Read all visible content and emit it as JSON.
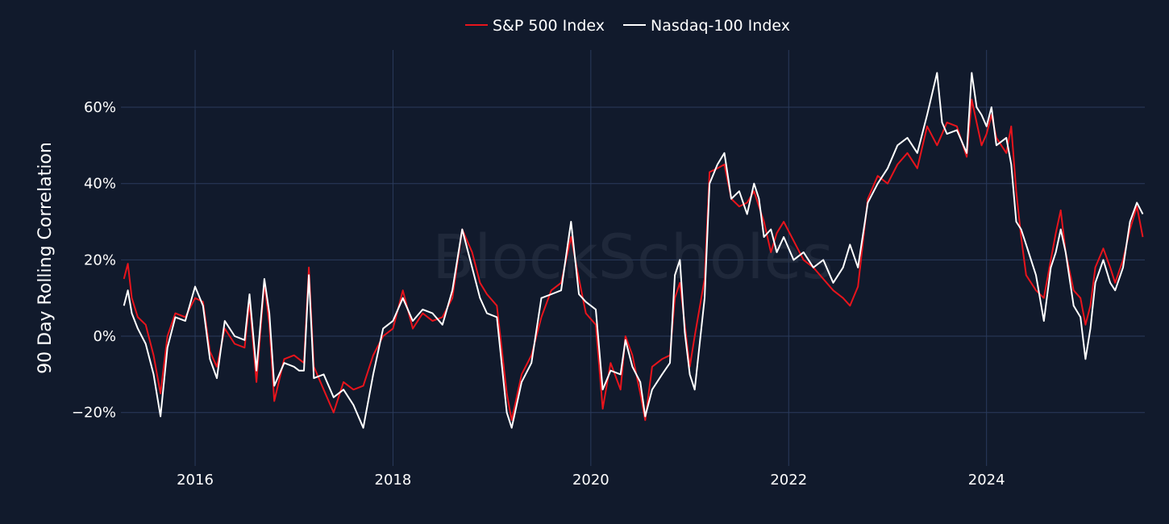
{
  "chart_data": {
    "type": "line",
    "title": "",
    "xlabel": "",
    "ylabel": "90 Day Rolling Correlation",
    "watermark": "BlockScholes",
    "xlim": [
      2015.25,
      2025.6
    ],
    "ylim": [
      -34,
      75
    ],
    "x_ticks": [
      {
        "value": 2016,
        "label": "2016"
      },
      {
        "value": 2018,
        "label": "2018"
      },
      {
        "value": 2020,
        "label": "2020"
      },
      {
        "value": 2022,
        "label": "2022"
      },
      {
        "value": 2024,
        "label": "2024"
      }
    ],
    "y_ticks": [
      {
        "value": -20,
        "label": "−20%"
      },
      {
        "value": 0,
        "label": "0%"
      },
      {
        "value": 20,
        "label": "20%"
      },
      {
        "value": 40,
        "label": "40%"
      },
      {
        "value": 60,
        "label": "60%"
      }
    ],
    "legend_position": "top-center",
    "series": [
      {
        "name": "S&P 500 Index",
        "color": "#e8141c",
        "points": [
          [
            2015.28,
            15
          ],
          [
            2015.32,
            19
          ],
          [
            2015.36,
            10
          ],
          [
            2015.42,
            5
          ],
          [
            2015.5,
            3
          ],
          [
            2015.58,
            -5
          ],
          [
            2015.65,
            -15
          ],
          [
            2015.72,
            0
          ],
          [
            2015.8,
            6
          ],
          [
            2015.9,
            5
          ],
          [
            2016.0,
            10
          ],
          [
            2016.08,
            9
          ],
          [
            2016.15,
            -4
          ],
          [
            2016.22,
            -8
          ],
          [
            2016.3,
            2
          ],
          [
            2016.4,
            -2
          ],
          [
            2016.5,
            -3
          ],
          [
            2016.55,
            9
          ],
          [
            2016.62,
            -12
          ],
          [
            2016.7,
            14
          ],
          [
            2016.75,
            3
          ],
          [
            2016.8,
            -17
          ],
          [
            2016.9,
            -6
          ],
          [
            2017.0,
            -5
          ],
          [
            2017.05,
            -6
          ],
          [
            2017.1,
            -7
          ],
          [
            2017.15,
            18
          ],
          [
            2017.2,
            -8
          ],
          [
            2017.3,
            -14
          ],
          [
            2017.4,
            -20
          ],
          [
            2017.5,
            -12
          ],
          [
            2017.6,
            -14
          ],
          [
            2017.7,
            -13
          ],
          [
            2017.8,
            -5
          ],
          [
            2017.9,
            0
          ],
          [
            2018.0,
            2
          ],
          [
            2018.1,
            12
          ],
          [
            2018.2,
            2
          ],
          [
            2018.3,
            6
          ],
          [
            2018.4,
            4
          ],
          [
            2018.5,
            5
          ],
          [
            2018.6,
            10
          ],
          [
            2018.7,
            28
          ],
          [
            2018.8,
            22
          ],
          [
            2018.88,
            14
          ],
          [
            2018.95,
            11
          ],
          [
            2019.05,
            8
          ],
          [
            2019.15,
            -15
          ],
          [
            2019.2,
            -22
          ],
          [
            2019.3,
            -10
          ],
          [
            2019.4,
            -5
          ],
          [
            2019.5,
            5
          ],
          [
            2019.6,
            12
          ],
          [
            2019.7,
            14
          ],
          [
            2019.8,
            26
          ],
          [
            2019.88,
            15
          ],
          [
            2019.95,
            6
          ],
          [
            2020.05,
            3
          ],
          [
            2020.12,
            -19
          ],
          [
            2020.2,
            -7
          ],
          [
            2020.3,
            -14
          ],
          [
            2020.35,
            0
          ],
          [
            2020.42,
            -5
          ],
          [
            2020.5,
            -15
          ],
          [
            2020.55,
            -22
          ],
          [
            2020.62,
            -8
          ],
          [
            2020.72,
            -6
          ],
          [
            2020.8,
            -5
          ],
          [
            2020.85,
            10
          ],
          [
            2020.9,
            14
          ],
          [
            2020.95,
            3
          ],
          [
            2021.0,
            -8
          ],
          [
            2021.05,
            0
          ],
          [
            2021.15,
            15
          ],
          [
            2021.2,
            43
          ],
          [
            2021.28,
            44
          ],
          [
            2021.35,
            45
          ],
          [
            2021.42,
            36
          ],
          [
            2021.5,
            34
          ],
          [
            2021.58,
            35
          ],
          [
            2021.65,
            38
          ],
          [
            2021.7,
            34
          ],
          [
            2021.75,
            30
          ],
          [
            2021.82,
            22
          ],
          [
            2021.88,
            27
          ],
          [
            2021.95,
            30
          ],
          [
            2022.05,
            25
          ],
          [
            2022.15,
            20
          ],
          [
            2022.25,
            18
          ],
          [
            2022.35,
            15
          ],
          [
            2022.45,
            12
          ],
          [
            2022.55,
            10
          ],
          [
            2022.62,
            8
          ],
          [
            2022.7,
            13
          ],
          [
            2022.8,
            36
          ],
          [
            2022.9,
            42
          ],
          [
            2023.0,
            40
          ],
          [
            2023.1,
            45
          ],
          [
            2023.2,
            48
          ],
          [
            2023.3,
            44
          ],
          [
            2023.4,
            55
          ],
          [
            2023.5,
            50
          ],
          [
            2023.55,
            53
          ],
          [
            2023.6,
            56
          ],
          [
            2023.7,
            55
          ],
          [
            2023.8,
            47
          ],
          [
            2023.85,
            62
          ],
          [
            2023.9,
            56
          ],
          [
            2023.95,
            50
          ],
          [
            2024.0,
            53
          ],
          [
            2024.05,
            58
          ],
          [
            2024.1,
            52
          ],
          [
            2024.2,
            48
          ],
          [
            2024.25,
            55
          ],
          [
            2024.3,
            38
          ],
          [
            2024.35,
            26
          ],
          [
            2024.4,
            16
          ],
          [
            2024.5,
            12
          ],
          [
            2024.58,
            10
          ],
          [
            2024.65,
            20
          ],
          [
            2024.7,
            27
          ],
          [
            2024.75,
            33
          ],
          [
            2024.8,
            22
          ],
          [
            2024.88,
            12
          ],
          [
            2024.95,
            10
          ],
          [
            2025.0,
            3
          ],
          [
            2025.05,
            8
          ],
          [
            2025.1,
            18
          ],
          [
            2025.18,
            23
          ],
          [
            2025.25,
            18
          ],
          [
            2025.3,
            14
          ],
          [
            2025.38,
            20
          ],
          [
            2025.45,
            28
          ],
          [
            2025.52,
            34
          ],
          [
            2025.58,
            26
          ]
        ]
      },
      {
        "name": "Nasdaq-100 Index",
        "color": "#ffffff",
        "points": [
          [
            2015.28,
            8
          ],
          [
            2015.32,
            12
          ],
          [
            2015.36,
            6
          ],
          [
            2015.42,
            2
          ],
          [
            2015.5,
            -2
          ],
          [
            2015.58,
            -10
          ],
          [
            2015.65,
            -21
          ],
          [
            2015.72,
            -3
          ],
          [
            2015.8,
            5
          ],
          [
            2015.9,
            4
          ],
          [
            2016.0,
            13
          ],
          [
            2016.08,
            8
          ],
          [
            2016.15,
            -6
          ],
          [
            2016.22,
            -11
          ],
          [
            2016.3,
            4
          ],
          [
            2016.4,
            0
          ],
          [
            2016.5,
            -1
          ],
          [
            2016.55,
            11
          ],
          [
            2016.62,
            -9
          ],
          [
            2016.7,
            15
          ],
          [
            2016.75,
            6
          ],
          [
            2016.8,
            -13
          ],
          [
            2016.9,
            -7
          ],
          [
            2017.0,
            -8
          ],
          [
            2017.05,
            -9
          ],
          [
            2017.1,
            -9
          ],
          [
            2017.15,
            16
          ],
          [
            2017.2,
            -11
          ],
          [
            2017.3,
            -10
          ],
          [
            2017.4,
            -16
          ],
          [
            2017.5,
            -14
          ],
          [
            2017.6,
            -18
          ],
          [
            2017.7,
            -24
          ],
          [
            2017.8,
            -10
          ],
          [
            2017.9,
            2
          ],
          [
            2018.0,
            4
          ],
          [
            2018.1,
            10
          ],
          [
            2018.2,
            4
          ],
          [
            2018.3,
            7
          ],
          [
            2018.4,
            6
          ],
          [
            2018.5,
            3
          ],
          [
            2018.6,
            12
          ],
          [
            2018.7,
            28
          ],
          [
            2018.8,
            18
          ],
          [
            2018.88,
            10
          ],
          [
            2018.95,
            6
          ],
          [
            2019.05,
            5
          ],
          [
            2019.15,
            -20
          ],
          [
            2019.2,
            -24
          ],
          [
            2019.3,
            -12
          ],
          [
            2019.4,
            -7
          ],
          [
            2019.5,
            10
          ],
          [
            2019.6,
            11
          ],
          [
            2019.7,
            12
          ],
          [
            2019.8,
            30
          ],
          [
            2019.88,
            11
          ],
          [
            2019.95,
            9
          ],
          [
            2020.05,
            7
          ],
          [
            2020.12,
            -14
          ],
          [
            2020.2,
            -9
          ],
          [
            2020.3,
            -10
          ],
          [
            2020.35,
            -1
          ],
          [
            2020.42,
            -8
          ],
          [
            2020.5,
            -12
          ],
          [
            2020.55,
            -21
          ],
          [
            2020.62,
            -14
          ],
          [
            2020.72,
            -10
          ],
          [
            2020.8,
            -7
          ],
          [
            2020.85,
            16
          ],
          [
            2020.9,
            20
          ],
          [
            2020.95,
            1
          ],
          [
            2021.0,
            -10
          ],
          [
            2021.05,
            -14
          ],
          [
            2021.15,
            10
          ],
          [
            2021.2,
            40
          ],
          [
            2021.28,
            45
          ],
          [
            2021.35,
            48
          ],
          [
            2021.42,
            36
          ],
          [
            2021.5,
            38
          ],
          [
            2021.58,
            32
          ],
          [
            2021.65,
            40
          ],
          [
            2021.7,
            36
          ],
          [
            2021.75,
            26
          ],
          [
            2021.82,
            28
          ],
          [
            2021.88,
            22
          ],
          [
            2021.95,
            26
          ],
          [
            2022.05,
            20
          ],
          [
            2022.15,
            22
          ],
          [
            2022.25,
            18
          ],
          [
            2022.35,
            20
          ],
          [
            2022.45,
            14
          ],
          [
            2022.55,
            18
          ],
          [
            2022.62,
            24
          ],
          [
            2022.7,
            18
          ],
          [
            2022.8,
            35
          ],
          [
            2022.9,
            40
          ],
          [
            2023.0,
            44
          ],
          [
            2023.1,
            50
          ],
          [
            2023.2,
            52
          ],
          [
            2023.3,
            48
          ],
          [
            2023.4,
            58
          ],
          [
            2023.5,
            69
          ],
          [
            2023.55,
            56
          ],
          [
            2023.6,
            53
          ],
          [
            2023.7,
            54
          ],
          [
            2023.8,
            48
          ],
          [
            2023.85,
            69
          ],
          [
            2023.9,
            60
          ],
          [
            2023.95,
            58
          ],
          [
            2024.0,
            55
          ],
          [
            2024.05,
            60
          ],
          [
            2024.1,
            50
          ],
          [
            2024.2,
            52
          ],
          [
            2024.25,
            45
          ],
          [
            2024.3,
            30
          ],
          [
            2024.35,
            28
          ],
          [
            2024.4,
            24
          ],
          [
            2024.5,
            16
          ],
          [
            2024.58,
            4
          ],
          [
            2024.65,
            18
          ],
          [
            2024.7,
            22
          ],
          [
            2024.75,
            28
          ],
          [
            2024.8,
            22
          ],
          [
            2024.88,
            8
          ],
          [
            2024.95,
            5
          ],
          [
            2025.0,
            -6
          ],
          [
            2025.05,
            2
          ],
          [
            2025.1,
            14
          ],
          [
            2025.18,
            20
          ],
          [
            2025.25,
            14
          ],
          [
            2025.3,
            12
          ],
          [
            2025.38,
            18
          ],
          [
            2025.45,
            30
          ],
          [
            2025.52,
            35
          ],
          [
            2025.58,
            32
          ]
        ]
      }
    ]
  }
}
